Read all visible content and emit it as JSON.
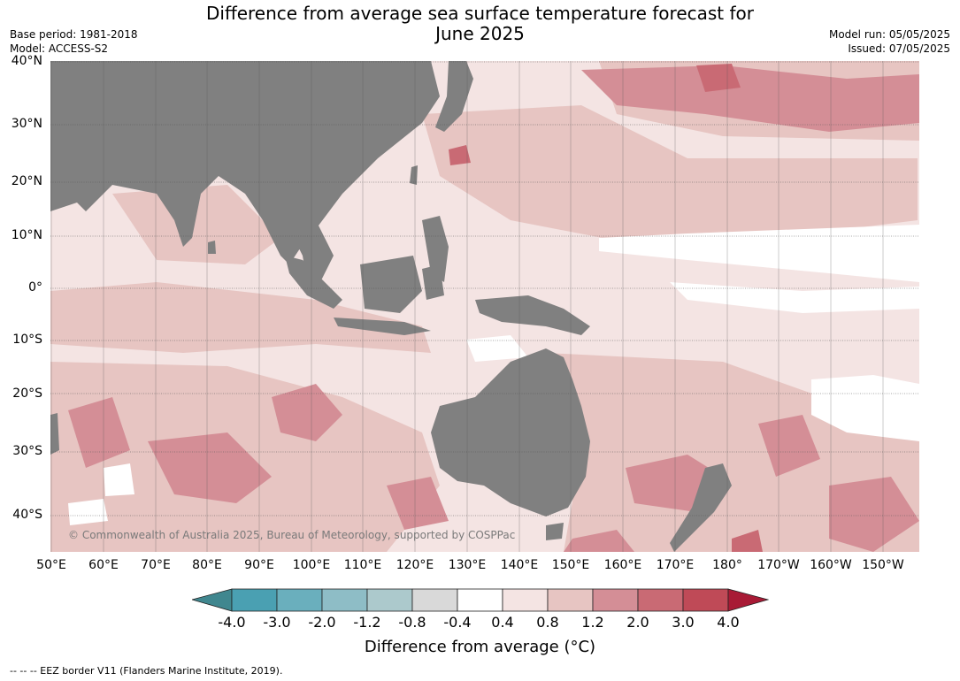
{
  "header": {
    "title_line1": "Difference from average sea surface temperature forecast for",
    "title_line2": "June 2025",
    "base_period": "Base period: 1981-2018",
    "model": "Model: ACCESS-S2",
    "model_run": "Model run: 05/05/2025",
    "issued": "Issued: 07/05/2025"
  },
  "map": {
    "lat_labels": [
      "40°N",
      "30°N",
      "20°N",
      "10°N",
      "0°",
      "10°S",
      "20°S",
      "30°S",
      "40°S"
    ],
    "lon_labels": [
      "50°E",
      "60°E",
      "70°E",
      "80°E",
      "90°E",
      "100°E",
      "110°E",
      "120°E",
      "130°E",
      "140°E",
      "150°E",
      "160°E",
      "170°E",
      "180°",
      "170°W",
      "160°W",
      "150°W"
    ],
    "copyright": "© Commonwealth of Australia 2025, Bureau of Meteorology, supported by COSPPac",
    "land_color": "#808080"
  },
  "colorbar": {
    "ticks": [
      "-4.0",
      "-3.0",
      "-2.0",
      "-1.2",
      "-0.8",
      "-0.4",
      "0.4",
      "0.8",
      "1.2",
      "2.0",
      "3.0",
      "4.0"
    ],
    "colors": [
      "#40878f",
      "#4aa0b2",
      "#6aafbd",
      "#8ebdc6",
      "#acc9cc",
      "#d9d9d9",
      "#ffffff",
      "#f4e4e3",
      "#e7c5c2",
      "#d48e96",
      "#c96a74",
      "#bf4a57",
      "#a81a35"
    ],
    "label": "Difference from average (°C)"
  },
  "footer": {
    "note": "--  --  -- EEZ border V11 (Flanders Marine Institute, 2019)."
  }
}
